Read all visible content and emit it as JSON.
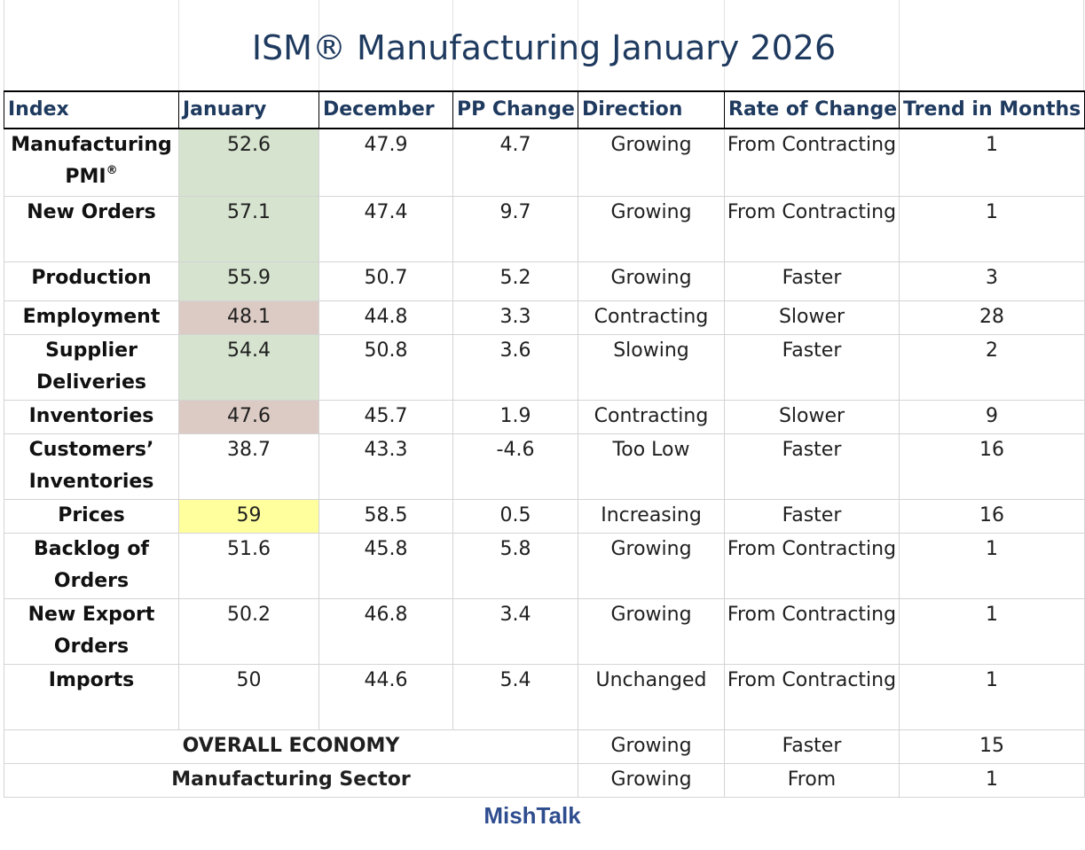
{
  "title": "ISM® Manufacturing January 2026",
  "headers": [
    "Index",
    "January",
    "December",
    "PP Change",
    "Direction",
    "Rate of Change",
    "Trend in Months"
  ],
  "rows": [
    {
      "index": "Manufacturing PMI",
      "index_sup": "®",
      "january": "52.6",
      "december": "47.9",
      "pp_change": "4.7",
      "direction": "Growing",
      "rate": "From Contracting",
      "trend": "1",
      "highlight": "green"
    },
    {
      "index": "New Orders",
      "january": "57.1",
      "december": "47.4",
      "pp_change": "9.7",
      "direction": "Growing",
      "rate": "From Contracting",
      "trend": "1",
      "highlight": "green"
    },
    {
      "index": "Production",
      "january": "55.9",
      "december": "50.7",
      "pp_change": "5.2",
      "direction": "Growing",
      "rate": "Faster",
      "trend": "3",
      "highlight": "green"
    },
    {
      "index": "Employment",
      "january": "48.1",
      "december": "44.8",
      "pp_change": "3.3",
      "direction": "Contracting",
      "rate": "Slower",
      "trend": "28",
      "highlight": "red"
    },
    {
      "index": "Supplier Deliveries",
      "january": "54.4",
      "december": "50.8",
      "pp_change": "3.6",
      "direction": "Slowing",
      "rate": "Faster",
      "trend": "2",
      "highlight": "green"
    },
    {
      "index": "Inventories",
      "january": "47.6",
      "december": "45.7",
      "pp_change": "1.9",
      "direction": "Contracting",
      "rate": "Slower",
      "trend": "9",
      "highlight": "red"
    },
    {
      "index": "Customers’ Inventories",
      "january": "38.7",
      "december": "43.3",
      "pp_change": "-4.6",
      "direction": "Too Low",
      "rate": "Faster",
      "trend": "16",
      "highlight": ""
    },
    {
      "index": "Prices",
      "january": "59",
      "december": "58.5",
      "pp_change": "0.5",
      "direction": "Increasing",
      "rate": "Faster",
      "trend": "16",
      "highlight": "yellow"
    },
    {
      "index": "Backlog of Orders",
      "january": "51.6",
      "december": "45.8",
      "pp_change": "5.8",
      "direction": "Growing",
      "rate": "From Contracting",
      "trend": "1",
      "highlight": ""
    },
    {
      "index": "New Export Orders",
      "january": "50.2",
      "december": "46.8",
      "pp_change": "3.4",
      "direction": "Growing",
      "rate": "From Contracting",
      "trend": "1",
      "highlight": ""
    },
    {
      "index": "Imports",
      "january": "50",
      "december": "44.6",
      "pp_change": "5.4",
      "direction": "Unchanged",
      "rate": "From Contracting",
      "trend": "1",
      "highlight": ""
    }
  ],
  "summary": [
    {
      "label": "OVERALL ECONOMY",
      "direction": "Growing",
      "rate": "Faster",
      "trend": "15"
    },
    {
      "label": "Manufacturing Sector",
      "direction": "Growing",
      "rate": "From",
      "trend": "1"
    }
  ],
  "colors": {
    "title": "#1f3a5f",
    "green": "#d5e3cf",
    "red": "#dccbc4",
    "yellow": "#ffff9e",
    "brand": "#2e4d8f"
  },
  "brand": "MishTalk"
}
